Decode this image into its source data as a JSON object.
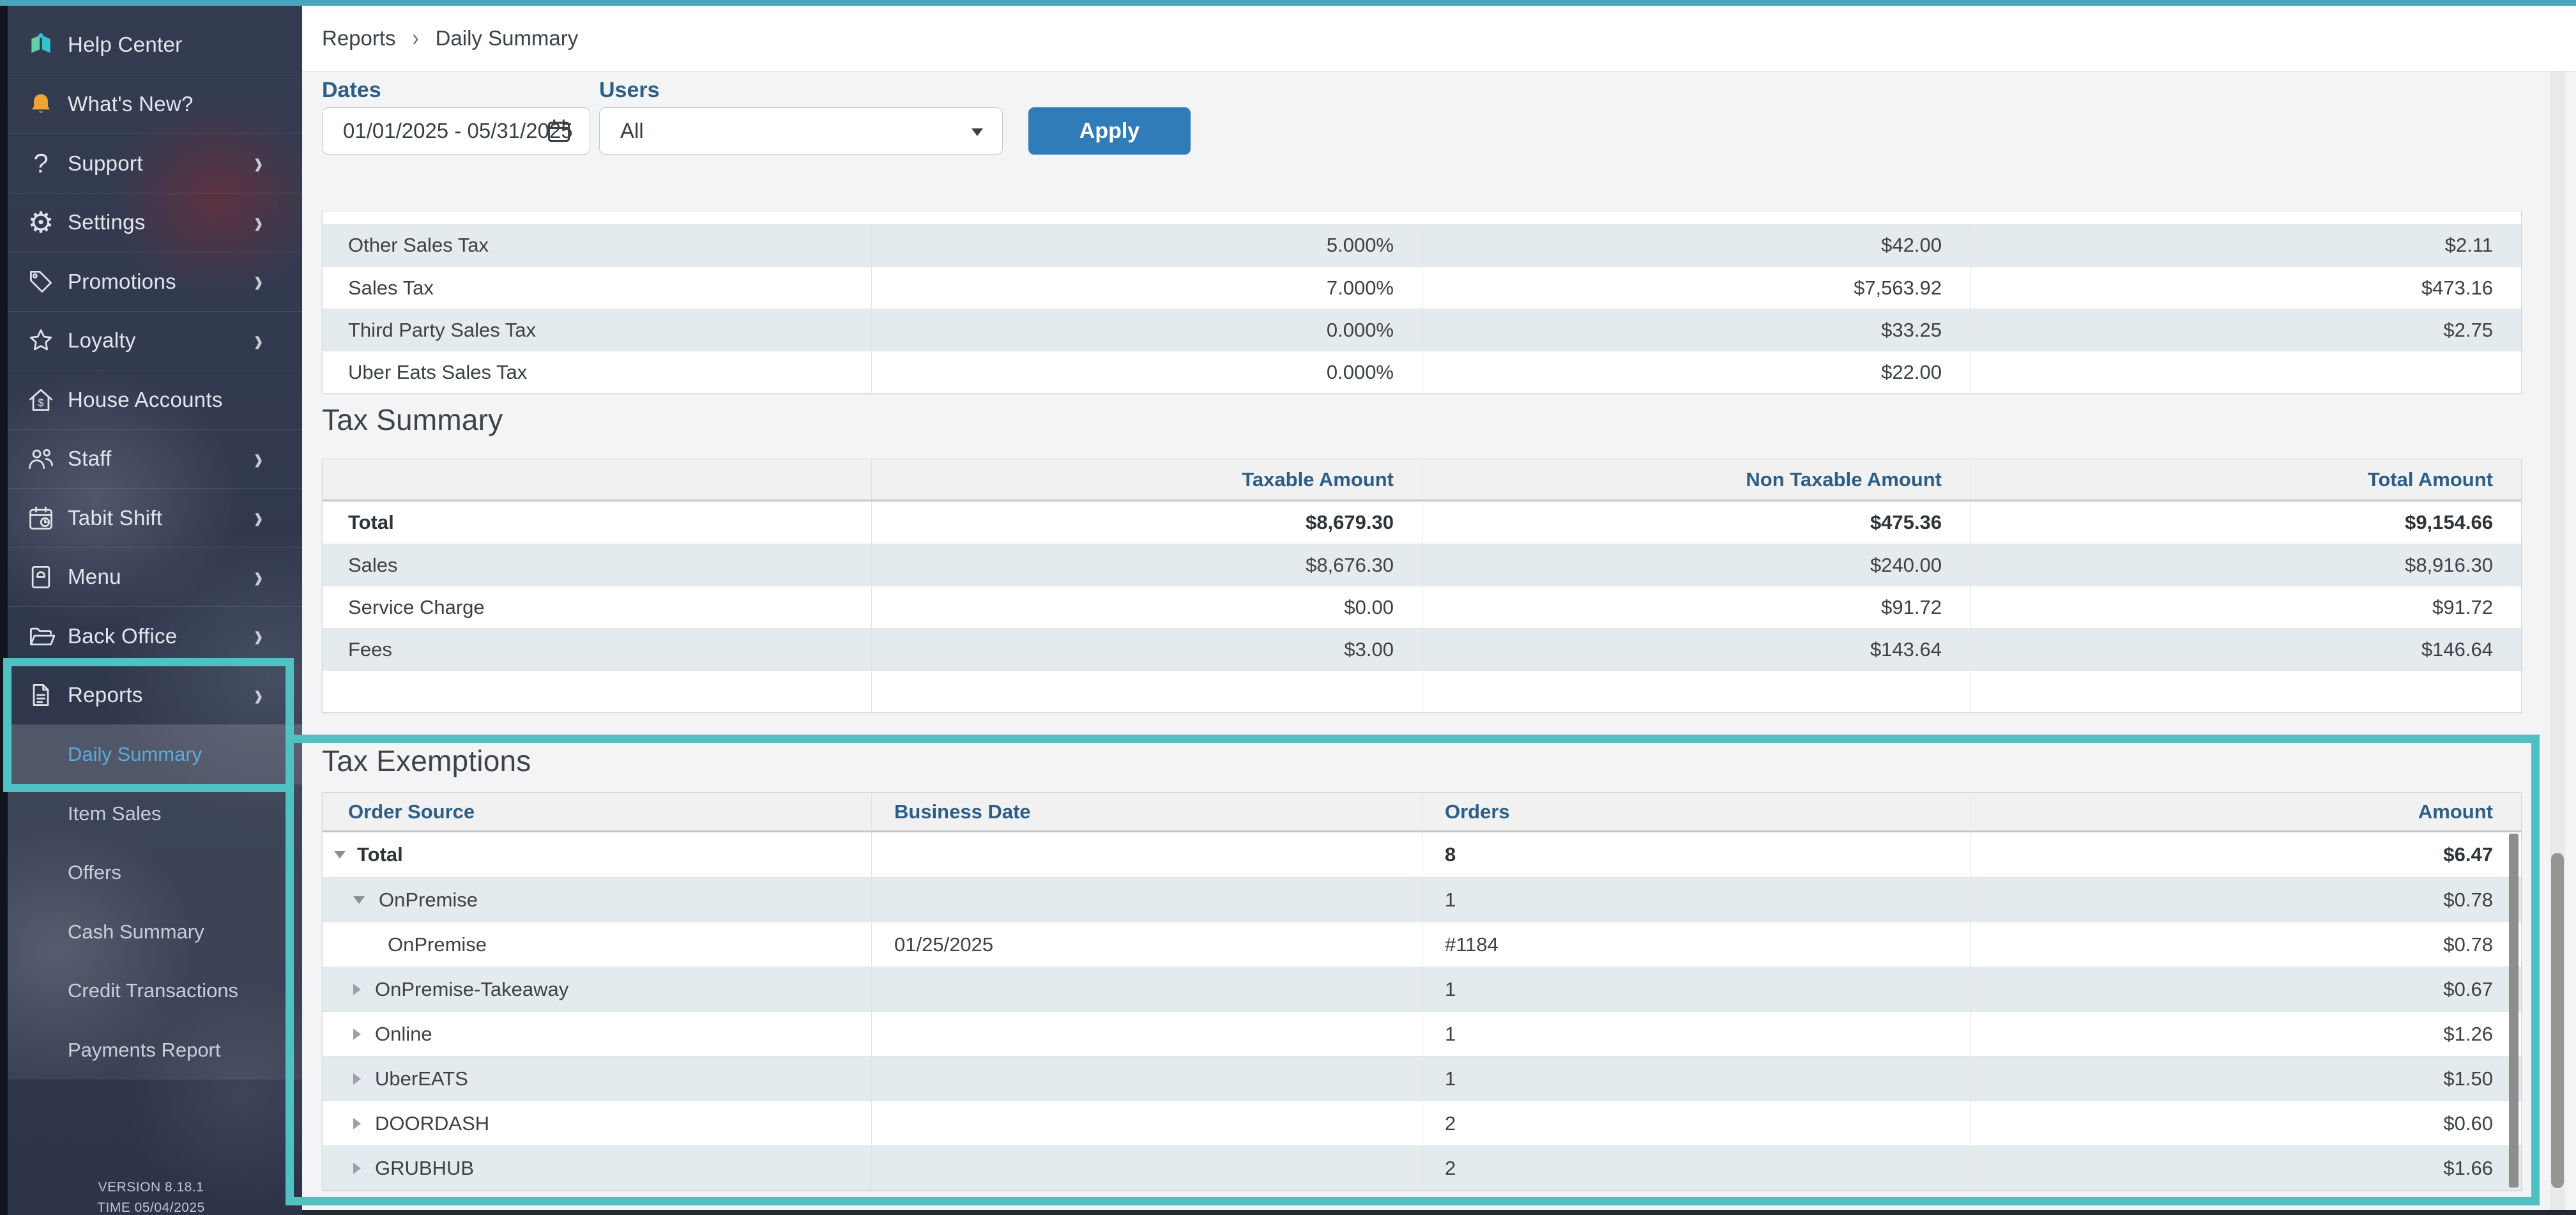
{
  "colors": {
    "accent_teal": "#4fc1c2",
    "apply_blue": "#2f7cb8",
    "header_label_blue": "#2d5e87",
    "row_stripe": "#e4ebee",
    "active_item_blue": "#5ca9d8"
  },
  "sidebar": {
    "items": [
      {
        "id": "help-center",
        "label": "Help Center",
        "icon": "book",
        "chevron": false
      },
      {
        "id": "whats-new",
        "label": "What's New?",
        "icon": "bell",
        "chevron": false
      },
      {
        "id": "support",
        "label": "Support",
        "icon": "question",
        "chevron": true
      },
      {
        "id": "settings",
        "label": "Settings",
        "icon": "gear",
        "chevron": true
      },
      {
        "id": "promotions",
        "label": "Promotions",
        "icon": "tag",
        "chevron": true
      },
      {
        "id": "loyalty",
        "label": "Loyalty",
        "icon": "star",
        "chevron": true
      },
      {
        "id": "house-accounts",
        "label": "House Accounts",
        "icon": "house-dollar",
        "chevron": false
      },
      {
        "id": "staff",
        "label": "Staff",
        "icon": "people",
        "chevron": true
      },
      {
        "id": "tabit-shift",
        "label": "Tabit Shift",
        "icon": "calendar-clock",
        "chevron": true
      },
      {
        "id": "menu",
        "label": "Menu",
        "icon": "menu-book",
        "chevron": true
      },
      {
        "id": "back-office",
        "label": "Back Office",
        "icon": "folder",
        "chevron": true
      },
      {
        "id": "reports",
        "label": "Reports",
        "icon": "document",
        "chevron": true
      }
    ],
    "sub_items": [
      {
        "id": "daily-summary",
        "label": "Daily Summary",
        "active": true
      },
      {
        "id": "item-sales",
        "label": "Item Sales",
        "active": false
      },
      {
        "id": "offers",
        "label": "Offers",
        "active": false
      },
      {
        "id": "cash-summary",
        "label": "Cash Summary",
        "active": false
      },
      {
        "id": "credit-transactions",
        "label": "Credit Transactions",
        "active": false
      },
      {
        "id": "payments-report",
        "label": "Payments Report",
        "active": false
      }
    ],
    "version": "VERSION 8.18.1",
    "time": "TIME 05/04/2025"
  },
  "breadcrumb": {
    "items": [
      "Reports",
      "Daily Summary"
    ],
    "separator": "›"
  },
  "filters": {
    "dates_label": "Dates",
    "dates_value": "01/01/2025 - 05/31/2025",
    "users_label": "Users",
    "users_value": "All",
    "apply_label": "Apply"
  },
  "tax_rates_table": {
    "rows": [
      {
        "name": "Other Sales Tax",
        "rate": "5.000%",
        "taxable": "$42.00",
        "tax": "$2.11"
      },
      {
        "name": "Sales Tax",
        "rate": "7.000%",
        "taxable": "$7,563.92",
        "tax": "$473.16"
      },
      {
        "name": "Third Party Sales Tax",
        "rate": "0.000%",
        "taxable": "$33.25",
        "tax": "$2.75"
      },
      {
        "name": "Uber Eats Sales Tax",
        "rate": "0.000%",
        "taxable": "$22.00",
        "tax": ""
      }
    ]
  },
  "tax_summary": {
    "title": "Tax Summary",
    "columns": [
      "",
      "Taxable Amount",
      "Non Taxable Amount",
      "Total Amount"
    ],
    "rows": [
      {
        "name": "Total",
        "bold": true,
        "values": [
          "$8,679.30",
          "$475.36",
          "$9,154.66"
        ]
      },
      {
        "name": "Sales",
        "bold": false,
        "values": [
          "$8,676.30",
          "$240.00",
          "$8,916.30"
        ]
      },
      {
        "name": "Service Charge",
        "bold": false,
        "values": [
          "$0.00",
          "$91.72",
          "$91.72"
        ]
      },
      {
        "name": "Fees",
        "bold": false,
        "values": [
          "$3.00",
          "$143.64",
          "$146.64"
        ]
      },
      {
        "name": "",
        "bold": false,
        "values": [
          "",
          "",
          ""
        ]
      }
    ]
  },
  "tax_exemptions": {
    "title": "Tax Exemptions",
    "columns": [
      "Order Source",
      "Business Date",
      "Orders",
      "Amount"
    ],
    "rows": [
      {
        "source": "Total",
        "caret": "down",
        "level": 0,
        "bold": true,
        "date": "",
        "orders": "8",
        "amount": "$6.47"
      },
      {
        "source": "OnPremise",
        "caret": "down",
        "level": 1,
        "bold": false,
        "date": "",
        "orders": "1",
        "amount": "$0.78"
      },
      {
        "source": "OnPremise",
        "caret": "none",
        "level": 2,
        "bold": false,
        "date": "01/25/2025",
        "orders": "#1184",
        "amount": "$0.78"
      },
      {
        "source": "OnPremise-Takeaway",
        "caret": "right",
        "level": 1,
        "bold": false,
        "date": "",
        "orders": "1",
        "amount": "$0.67"
      },
      {
        "source": "Online",
        "caret": "right",
        "level": 1,
        "bold": false,
        "date": "",
        "orders": "1",
        "amount": "$1.26"
      },
      {
        "source": "UberEATS",
        "caret": "right",
        "level": 1,
        "bold": false,
        "date": "",
        "orders": "1",
        "amount": "$1.50"
      },
      {
        "source": "DOORDASH",
        "caret": "right",
        "level": 1,
        "bold": false,
        "date": "",
        "orders": "2",
        "amount": "$0.60"
      },
      {
        "source": "GRUBHUB",
        "caret": "right",
        "level": 1,
        "bold": false,
        "date": "",
        "orders": "2",
        "amount": "$1.66"
      }
    ]
  }
}
